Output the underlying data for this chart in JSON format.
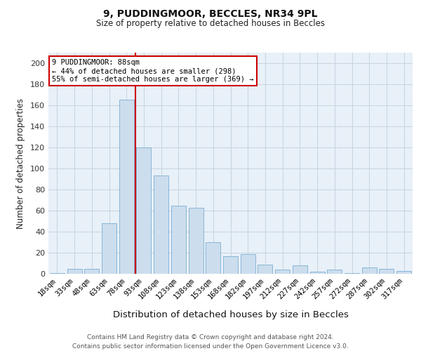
{
  "title1": "9, PUDDINGMOOR, BECCLES, NR34 9PL",
  "title2": "Size of property relative to detached houses in Beccles",
  "xlabel": "Distribution of detached houses by size in Beccles",
  "ylabel": "Number of detached properties",
  "categories": [
    "18sqm",
    "33sqm",
    "48sqm",
    "63sqm",
    "78sqm",
    "93sqm",
    "108sqm",
    "123sqm",
    "138sqm",
    "153sqm",
    "168sqm",
    "182sqm",
    "197sqm",
    "212sqm",
    "227sqm",
    "242sqm",
    "257sqm",
    "272sqm",
    "287sqm",
    "302sqm",
    "317sqm"
  ],
  "values": [
    1,
    5,
    5,
    48,
    165,
    120,
    93,
    65,
    63,
    30,
    17,
    19,
    9,
    4,
    8,
    2,
    4,
    1,
    6,
    5,
    3
  ],
  "bar_color": "#ccdded",
  "bar_edgecolor": "#7bafd4",
  "bar_width": 0.85,
  "grid_color": "#c8d4e0",
  "background_color": "#e8f0f8",
  "ylim": [
    0,
    210
  ],
  "yticks": [
    0,
    20,
    40,
    60,
    80,
    100,
    120,
    140,
    160,
    180,
    200
  ],
  "property_line_x": 4.5,
  "property_line_color": "#cc0000",
  "annotation_text": "9 PUDDINGMOOR: 88sqm\n← 44% of detached houses are smaller (298)\n55% of semi-detached houses are larger (369) →",
  "annotation_box_color": "#ffffff",
  "annotation_box_edgecolor": "#cc0000",
  "footer1": "Contains HM Land Registry data © Crown copyright and database right 2024.",
  "footer2": "Contains public sector information licensed under the Open Government Licence v3.0."
}
